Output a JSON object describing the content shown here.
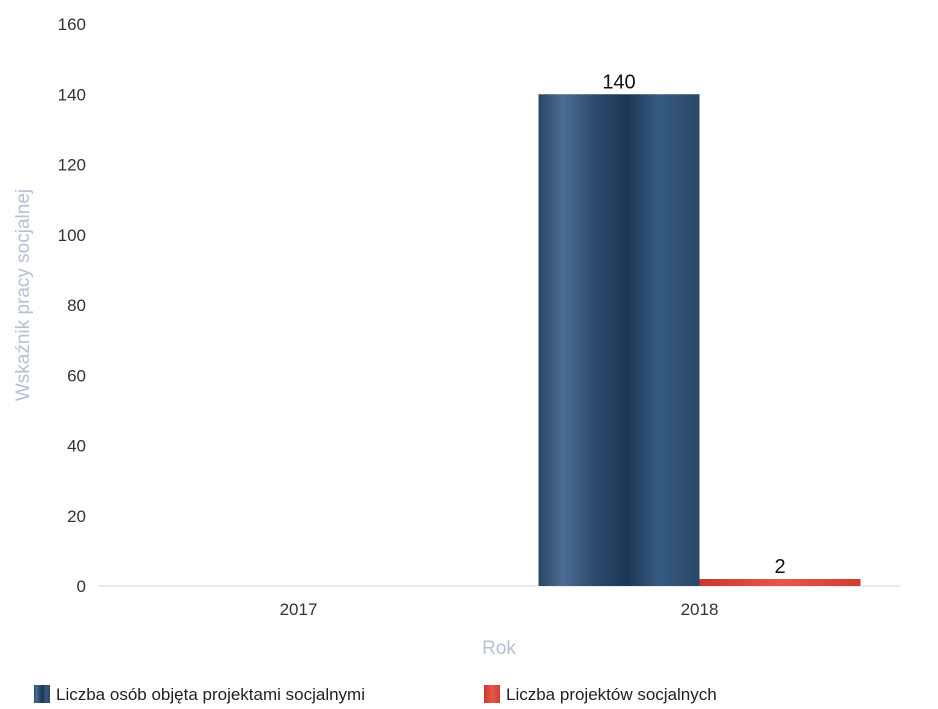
{
  "chart_data": {
    "type": "bar",
    "categories": [
      "2017",
      "2018"
    ],
    "series": [
      {
        "name": "Liczba osób objęta projektami socjalnymi",
        "values": [
          0,
          140
        ],
        "color": "#2f4e73"
      },
      {
        "name": "Liczba projektów socjalnych",
        "values": [
          0,
          2
        ],
        "color": "#e0493c"
      }
    ],
    "data_labels": [
      "140",
      "2"
    ],
    "xlabel": "Rok",
    "ylabel": "Wskaźnik pracy socjalnej",
    "ylim": [
      0,
      160
    ],
    "yticks": [
      0,
      20,
      40,
      60,
      80,
      100,
      120,
      140,
      160
    ],
    "grid": false,
    "legend_position": "bottom-left"
  }
}
